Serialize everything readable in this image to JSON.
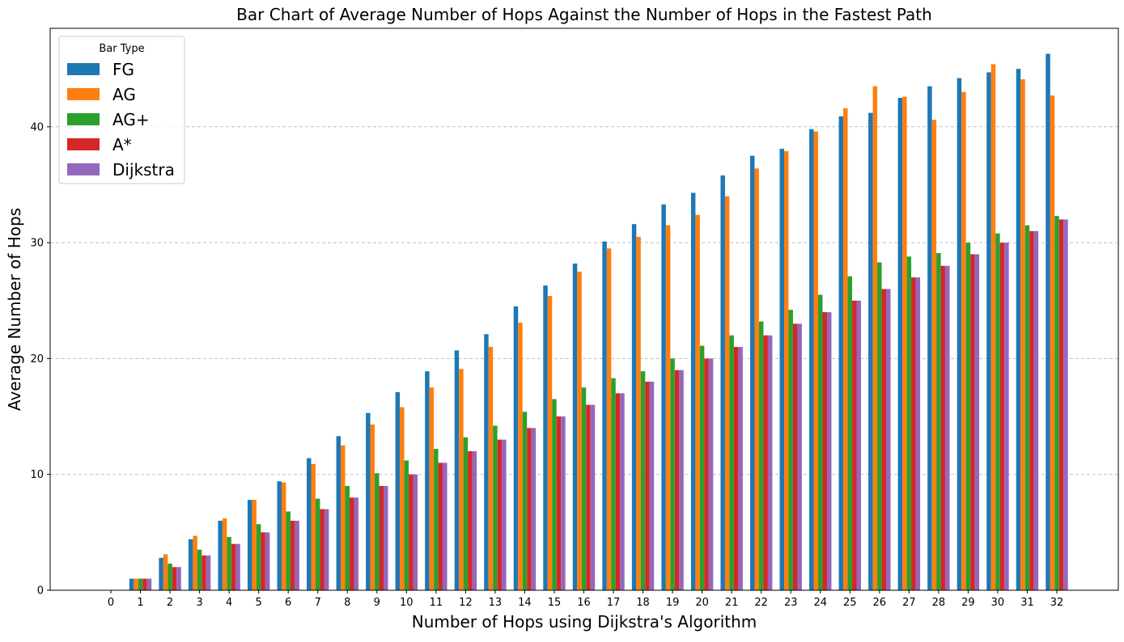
{
  "chart_data": {
    "type": "bar",
    "title": "Bar Chart of Average Number of Hops Against the Number of Hops in the Fastest Path",
    "xlabel": "Number of Hops using Dijkstra's Algorithm",
    "ylabel": "Average Number of Hops",
    "categories": [
      "0",
      "1",
      "2",
      "3",
      "4",
      "5",
      "6",
      "7",
      "8",
      "9",
      "10",
      "11",
      "12",
      "13",
      "14",
      "15",
      "16",
      "17",
      "18",
      "19",
      "20",
      "21",
      "22",
      "23",
      "24",
      "25",
      "26",
      "27",
      "28",
      "29",
      "30",
      "31",
      "32"
    ],
    "ylim": [
      0,
      48.5
    ],
    "yticks": [
      0,
      10,
      20,
      30,
      40
    ],
    "grid": "y-dashed",
    "legend": {
      "title": "Bar Type",
      "position": "top-left"
    },
    "series": [
      {
        "name": "FG",
        "color": "#1f77b4",
        "values": [
          0,
          1,
          2.8,
          4.4,
          6.0,
          7.8,
          9.4,
          11.4,
          13.3,
          15.3,
          17.1,
          18.9,
          20.7,
          22.1,
          24.5,
          26.3,
          28.2,
          30.1,
          31.6,
          33.3,
          34.3,
          35.8,
          37.5,
          38.1,
          39.8,
          40.9,
          41.2,
          42.5,
          43.5,
          44.2,
          44.7,
          45.0,
          46.3
        ]
      },
      {
        "name": "AG",
        "color": "#ff7f0e",
        "values": [
          0,
          1,
          3.1,
          4.7,
          6.2,
          7.8,
          9.3,
          10.9,
          12.5,
          14.3,
          15.8,
          17.5,
          19.1,
          21.0,
          23.1,
          25.4,
          27.5,
          29.5,
          30.5,
          31.5,
          32.4,
          34.0,
          36.4,
          37.9,
          39.6,
          41.6,
          43.5,
          42.6,
          40.6,
          43.0,
          45.4,
          44.1,
          42.7
        ]
      },
      {
        "name": "AG+",
        "color": "#2ca02c",
        "values": [
          0,
          1,
          2.3,
          3.5,
          4.6,
          5.7,
          6.8,
          7.9,
          9.0,
          10.1,
          11.2,
          12.2,
          13.2,
          14.2,
          15.4,
          16.5,
          17.5,
          18.3,
          18.9,
          20.0,
          21.1,
          22.0,
          23.2,
          24.2,
          25.5,
          27.1,
          28.3,
          28.8,
          29.1,
          30.0,
          30.8,
          31.5,
          32.3
        ]
      },
      {
        "name": "A*",
        "color": "#d62728",
        "values": [
          0,
          1,
          2,
          3,
          4,
          5,
          6,
          7,
          8,
          9,
          10,
          11,
          12,
          13,
          14,
          15,
          16,
          17,
          18,
          19,
          20,
          21,
          22,
          23,
          24,
          25,
          26,
          27,
          28,
          29,
          30,
          31,
          32
        ]
      },
      {
        "name": "Dijkstra",
        "color": "#9467bd",
        "values": [
          0,
          1,
          2,
          3,
          4,
          5,
          6,
          7,
          8,
          9,
          10,
          11,
          12,
          13,
          14,
          15,
          16,
          17,
          18,
          19,
          20,
          21,
          22,
          23,
          24,
          25,
          26,
          27,
          28,
          29,
          30,
          31,
          32
        ]
      }
    ]
  }
}
